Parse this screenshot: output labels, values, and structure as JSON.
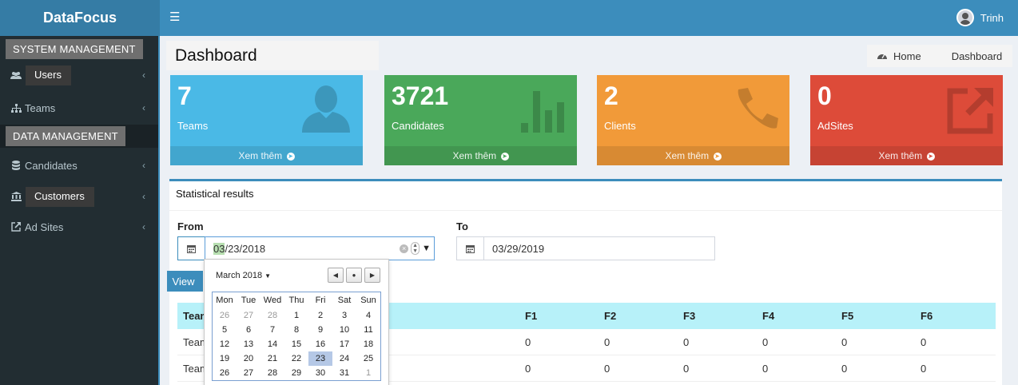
{
  "app": {
    "brand": "DataFocus",
    "user_name": "Trinh"
  },
  "sidebar": {
    "section_system": "SYSTEM MANAGEMENT",
    "section_data": "DATA MANAGEMENT",
    "items": [
      {
        "label": "Users",
        "icon": "users-icon"
      },
      {
        "label": "Teams",
        "icon": "sitemap-icon"
      },
      {
        "label": "Candidates",
        "icon": "database-icon"
      },
      {
        "label": "Customers",
        "icon": "bank-icon"
      },
      {
        "label": "Ad Sites",
        "icon": "external-link-icon"
      }
    ]
  },
  "page": {
    "title": "Dashboard"
  },
  "breadcrumb": {
    "home": "Home",
    "current": "Dashboard"
  },
  "stats": [
    {
      "value": "7",
      "label": "Teams",
      "more": "Xem thêm",
      "color": "#4ab9e6",
      "icon": "user-icon"
    },
    {
      "value": "3721",
      "label": "Candidates",
      "more": "Xem thêm",
      "color": "#4aa85a",
      "icon": "bar-chart-icon"
    },
    {
      "value": "2",
      "label": "Clients",
      "more": "Xem thêm",
      "color": "#f19a39",
      "icon": "phone-icon"
    },
    {
      "value": "0",
      "label": "AdSites",
      "more": "Xem thêm",
      "color": "#dd4b39",
      "icon": "external-link-icon"
    }
  ],
  "statistics": {
    "title": "Statistical results",
    "from_label": "From",
    "to_label": "To",
    "from_value_month": "03",
    "from_value_rest": "/23/2018",
    "to_value": "03/29/2019",
    "view_button": "View"
  },
  "table": {
    "headers": [
      "Team",
      "F1",
      "F2",
      "F3",
      "F4",
      "F5",
      "F6"
    ],
    "rows": [
      [
        "Team",
        "0",
        "0",
        "0",
        "0",
        "0",
        "0"
      ],
      [
        "Team",
        "0",
        "0",
        "0",
        "0",
        "0",
        "0"
      ]
    ]
  },
  "calendar": {
    "month_label": "March 2018",
    "weekdays": [
      "Mon",
      "Tue",
      "Wed",
      "Thu",
      "Fri",
      "Sat",
      "Sun"
    ],
    "weeks": [
      [
        "26",
        "27",
        "28",
        "1",
        "2",
        "3",
        "4"
      ],
      [
        "5",
        "6",
        "7",
        "8",
        "9",
        "10",
        "11"
      ],
      [
        "12",
        "13",
        "14",
        "15",
        "16",
        "17",
        "18"
      ],
      [
        "19",
        "20",
        "21",
        "22",
        "23",
        "24",
        "25"
      ],
      [
        "26",
        "27",
        "28",
        "29",
        "30",
        "31",
        "1"
      ]
    ],
    "selected_day": "23"
  }
}
